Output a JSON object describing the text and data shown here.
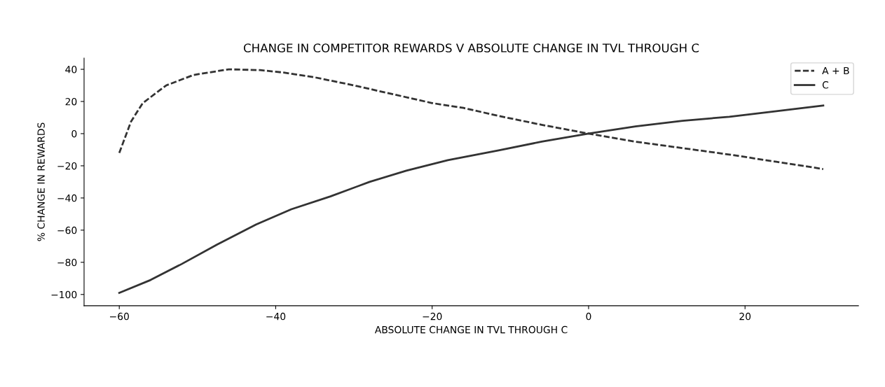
{
  "chart_data": {
    "type": "line",
    "title": "CHANGE IN COMPETITOR REWARDS V ABSOLUTE CHANGE IN TVL THROUGH C",
    "xlabel": "ABSOLUTE CHANGE IN TVL THROUGH C",
    "ylabel": "% CHANGE IN REWARDS",
    "series": [
      {
        "name": "A + B",
        "color": "#333333",
        "line_style": "dashed",
        "x": [
          -60,
          -58.5,
          -57,
          -54,
          -50.5,
          -46,
          -42,
          -39,
          -35,
          -30,
          -25,
          -20,
          -16,
          -11.5,
          -6,
          0,
          6,
          12,
          18,
          24,
          30
        ],
        "values": [
          -12,
          7.5,
          19,
          30,
          36.5,
          40,
          39.5,
          38,
          35,
          30,
          24.5,
          19,
          16,
          11,
          5.5,
          0,
          -5,
          -9,
          -13,
          -17.5,
          -22
        ]
      },
      {
        "name": "C",
        "color": "#333333",
        "line_style": "solid",
        "x": [
          -60,
          -56,
          -52,
          -47.5,
          -42.5,
          -38,
          -33,
          -28,
          -23.3,
          -18,
          -11.5,
          -6,
          0,
          6,
          12,
          18,
          24,
          30
        ],
        "values": [
          -99,
          -91,
          -81,
          -69,
          -56.5,
          -47,
          -39,
          -30,
          -23,
          -16.5,
          -10.4,
          -5,
          0,
          4.5,
          8,
          10.5,
          14,
          17.5
        ]
      }
    ],
    "xlim": [
      -64.5,
      34.5
    ],
    "xticks": [
      -60,
      -40,
      -20,
      0,
      20
    ],
    "ylim": [
      -107,
      47
    ],
    "yticks": [
      -100,
      -80,
      -60,
      -40,
      -20,
      0,
      20,
      40
    ],
    "legend": "top right",
    "grid": false
  }
}
